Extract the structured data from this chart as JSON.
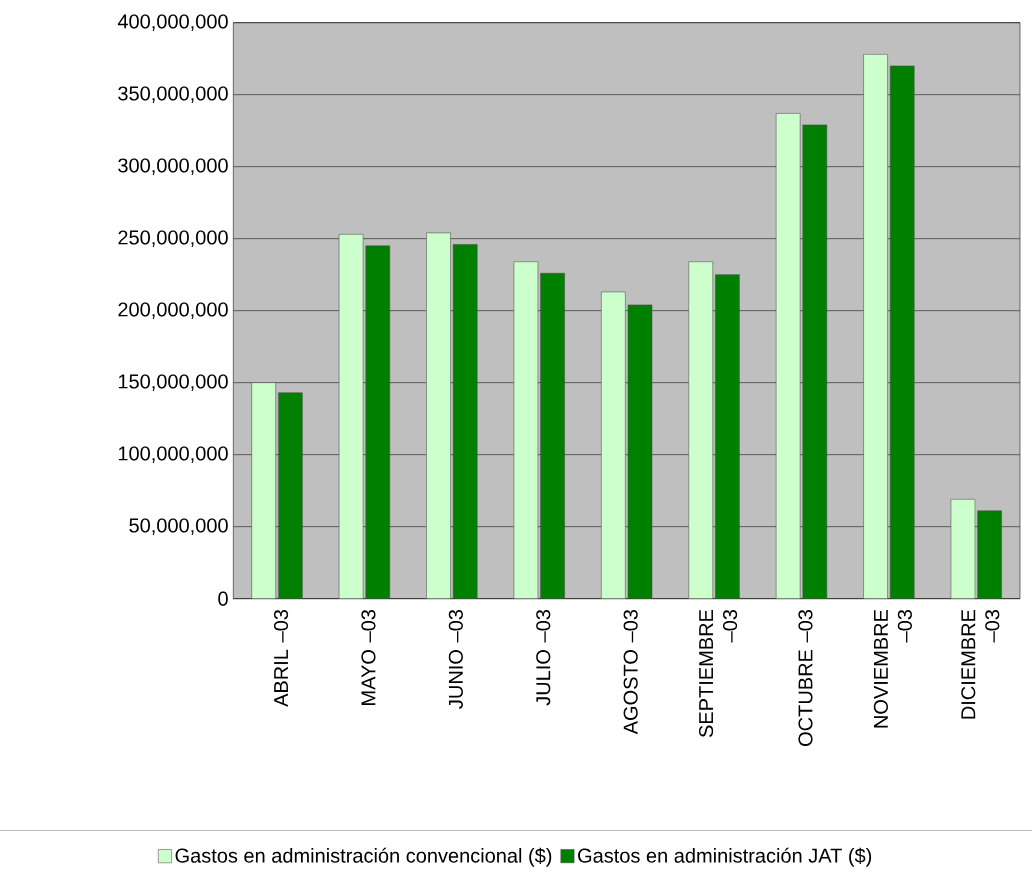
{
  "chart_data": {
    "type": "bar",
    "categories": [
      "ABRIL –03",
      "MAYO –03",
      "JUNIO –03",
      "JULIO –03",
      "AGOSTO –03",
      "SEPTIEMBRE –03",
      "OCTUBRE –03",
      "NOVIEMBRE –03",
      "DICIEMBRE –03"
    ],
    "series": [
      {
        "name": "Gastos en administración convencional ($)",
        "color": "#ccffcc",
        "values": [
          150000000,
          253000000,
          254000000,
          234000000,
          213000000,
          234000000,
          337000000,
          378000000,
          69000000
        ]
      },
      {
        "name": "Gastos en administración  JAT ($)",
        "color": "#008000",
        "values": [
          143000000,
          245000000,
          246000000,
          226000000,
          204000000,
          225000000,
          329000000,
          370000000,
          61000000
        ]
      }
    ],
    "ylim": [
      0,
      400000000
    ],
    "yticks": [
      {
        "value": 0,
        "label": "0"
      },
      {
        "value": 50000000,
        "label": "50,000,000"
      },
      {
        "value": 100000000,
        "label": "100,000,000"
      },
      {
        "value": 150000000,
        "label": "150,000,000"
      },
      {
        "value": 200000000,
        "label": "200,000,000"
      },
      {
        "value": 250000000,
        "label": "250,000,000"
      },
      {
        "value": 300000000,
        "label": "300,000,000"
      },
      {
        "value": 350000000,
        "label": "350,000,000"
      },
      {
        "value": 400000000,
        "label": "400,000,000"
      }
    ],
    "grid": "y",
    "legend": "bottom"
  }
}
